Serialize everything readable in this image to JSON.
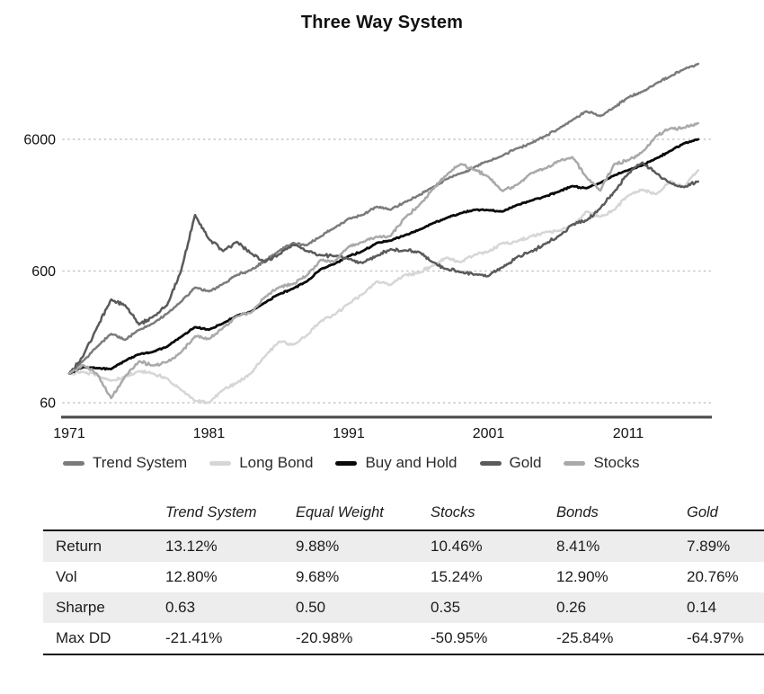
{
  "chart_data": {
    "type": "line",
    "title": "Three Way System",
    "yscale": "log",
    "grid": "horizontal-dotted",
    "legend_position": "bottom",
    "xticks": [
      1971,
      1981,
      1991,
      2001,
      2011
    ],
    "yticks": [
      60,
      600,
      6000
    ],
    "ylim": [
      45,
      30000
    ],
    "x": [
      1971,
      1972,
      1973,
      1974,
      1975,
      1976,
      1977,
      1978,
      1979,
      1980,
      1981,
      1982,
      1983,
      1984,
      1985,
      1986,
      1987,
      1988,
      1989,
      1990,
      1991,
      1992,
      1993,
      1994,
      1995,
      1996,
      1997,
      1998,
      1999,
      2000,
      2001,
      2002,
      2003,
      2004,
      2005,
      2006,
      2007,
      2008,
      2009,
      2010,
      2011,
      2012,
      2013,
      2014,
      2015,
      2016
    ],
    "series": [
      {
        "name": "Trend System",
        "color": "#7b7b7b",
        "values": [
          100,
          125,
          160,
          200,
          180,
          215,
          240,
          285,
          350,
          450,
          420,
          480,
          560,
          610,
          720,
          850,
          980,
          940,
          1100,
          1280,
          1500,
          1600,
          1850,
          1750,
          2000,
          2250,
          2600,
          3000,
          3300,
          3700,
          4100,
          4500,
          5100,
          5600,
          6300,
          7200,
          8400,
          9800,
          9000,
          10500,
          12500,
          13800,
          16000,
          18000,
          20500,
          22500
        ]
      },
      {
        "name": "Long Bond",
        "color": "#d6d6d6",
        "values": [
          100,
          103,
          97,
          88,
          95,
          104,
          100,
          92,
          75,
          62,
          60,
          75,
          85,
          100,
          135,
          175,
          165,
          195,
          250,
          280,
          340,
          400,
          500,
          470,
          560,
          580,
          660,
          760,
          700,
          800,
          840,
          980,
          1000,
          1100,
          1180,
          1210,
          1330,
          1700,
          1550,
          1750,
          2250,
          2500,
          2300,
          2900,
          2600,
          3500
        ]
      },
      {
        "name": "Buy and Hold",
        "color": "#0a0a0a",
        "values": [
          100,
          112,
          110,
          108,
          125,
          140,
          146,
          160,
          190,
          225,
          215,
          240,
          275,
          295,
          345,
          400,
          440,
          500,
          620,
          680,
          780,
          850,
          980,
          1020,
          1120,
          1230,
          1380,
          1520,
          1650,
          1750,
          1740,
          1700,
          1900,
          2050,
          2200,
          2400,
          2650,
          2550,
          2800,
          3200,
          3500,
          3800,
          4300,
          4900,
          5600,
          6000
        ]
      },
      {
        "name": "Gold",
        "color": "#5a5a5a",
        "values": [
          100,
          135,
          225,
          365,
          330,
          235,
          270,
          330,
          600,
          1600,
          1050,
          850,
          1000,
          820,
          700,
          800,
          950,
          850,
          790,
          780,
          740,
          690,
          780,
          880,
          860,
          840,
          700,
          620,
          590,
          565,
          550,
          640,
          760,
          840,
          960,
          1100,
          1350,
          1450,
          1800,
          2400,
          3300,
          4000,
          3300,
          2800,
          2600,
          2870
        ]
      },
      {
        "name": "Stocks",
        "color": "#a9a9a9",
        "values": [
          100,
          116,
          99,
          65,
          95,
          124,
          115,
          122,
          145,
          192,
          183,
          222,
          272,
          289,
          381,
          452,
          476,
          555,
          730,
          708,
          923,
          993,
          1093,
          1107,
          1523,
          1873,
          2498,
          3212,
          3888,
          3534,
          3114,
          2426,
          2700,
          3300,
          3600,
          4100,
          4400,
          3100,
          2450,
          3900,
          4154,
          4819,
          6380,
          7253,
          7353,
          7950
        ]
      }
    ]
  },
  "table": {
    "columns": [
      "",
      "Trend System",
      "Equal Weight",
      "Stocks",
      "Bonds",
      "Gold"
    ],
    "rows": [
      {
        "label": "Return",
        "values": [
          "13.12%",
          "9.88%",
          "10.46%",
          "8.41%",
          "7.89%"
        ]
      },
      {
        "label": "Vol",
        "values": [
          "12.80%",
          "9.68%",
          "15.24%",
          "12.90%",
          "20.76%"
        ]
      },
      {
        "label": "Sharpe",
        "values": [
          "0.63",
          "0.50",
          "0.35",
          "0.26",
          "0.14"
        ]
      },
      {
        "label": "Max DD",
        "values": [
          "-21.41%",
          "-20.98%",
          "-50.95%",
          "-25.84%",
          "-64.97%"
        ]
      }
    ]
  },
  "colors": {
    "grid": "#c4c4c4",
    "axis": "#4a4a4a",
    "tick_text": "#111111",
    "row_stripe": "#ededed"
  }
}
